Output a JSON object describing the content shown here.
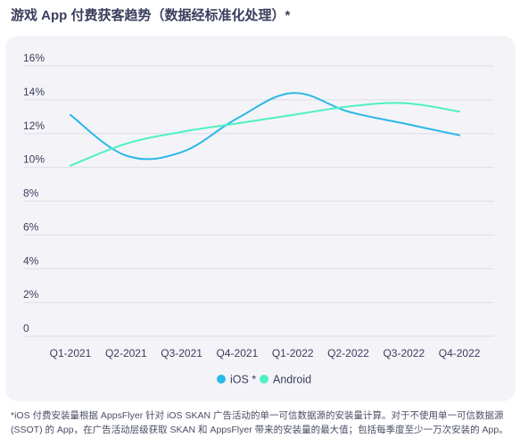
{
  "title": "游戏 App 付费获客趋势（数据经标准化处理）*",
  "footnote": "*iOS 付费安装量根据 AppsFlyer 针对 iOS SKAN 广告活动的单一可信数据源的安装量计算。对于不使用单一可信数据源 (SSOT) 的 App，在广告活动层级获取 SKAN 和 AppsFlyer 带来的安装量的最大值；包括每季度至少一万次安装的 App。",
  "chart_data": {
    "type": "line",
    "categories": [
      "Q1-2021",
      "Q2-2021",
      "Q3-2021",
      "Q4-2021",
      "Q1-2022",
      "Q2-2022",
      "Q3-2022",
      "Q4-2022"
    ],
    "y_ticks": [
      "0",
      "2%",
      "4%",
      "6%",
      "8%",
      "10%",
      "12%",
      "14%",
      "16%"
    ],
    "ylim": [
      0,
      16
    ],
    "grid": true,
    "legend_position": "bottom-center",
    "series": [
      {
        "name": "iOS *",
        "color": "#2ab8e8",
        "values": [
          13.1,
          10.7,
          10.9,
          12.9,
          14.4,
          13.3,
          12.6,
          11.9
        ]
      },
      {
        "name": "Android",
        "color": "#4ff0c4",
        "values": [
          10.1,
          11.4,
          12.1,
          12.6,
          13.1,
          13.6,
          13.8,
          13.3
        ]
      }
    ]
  }
}
